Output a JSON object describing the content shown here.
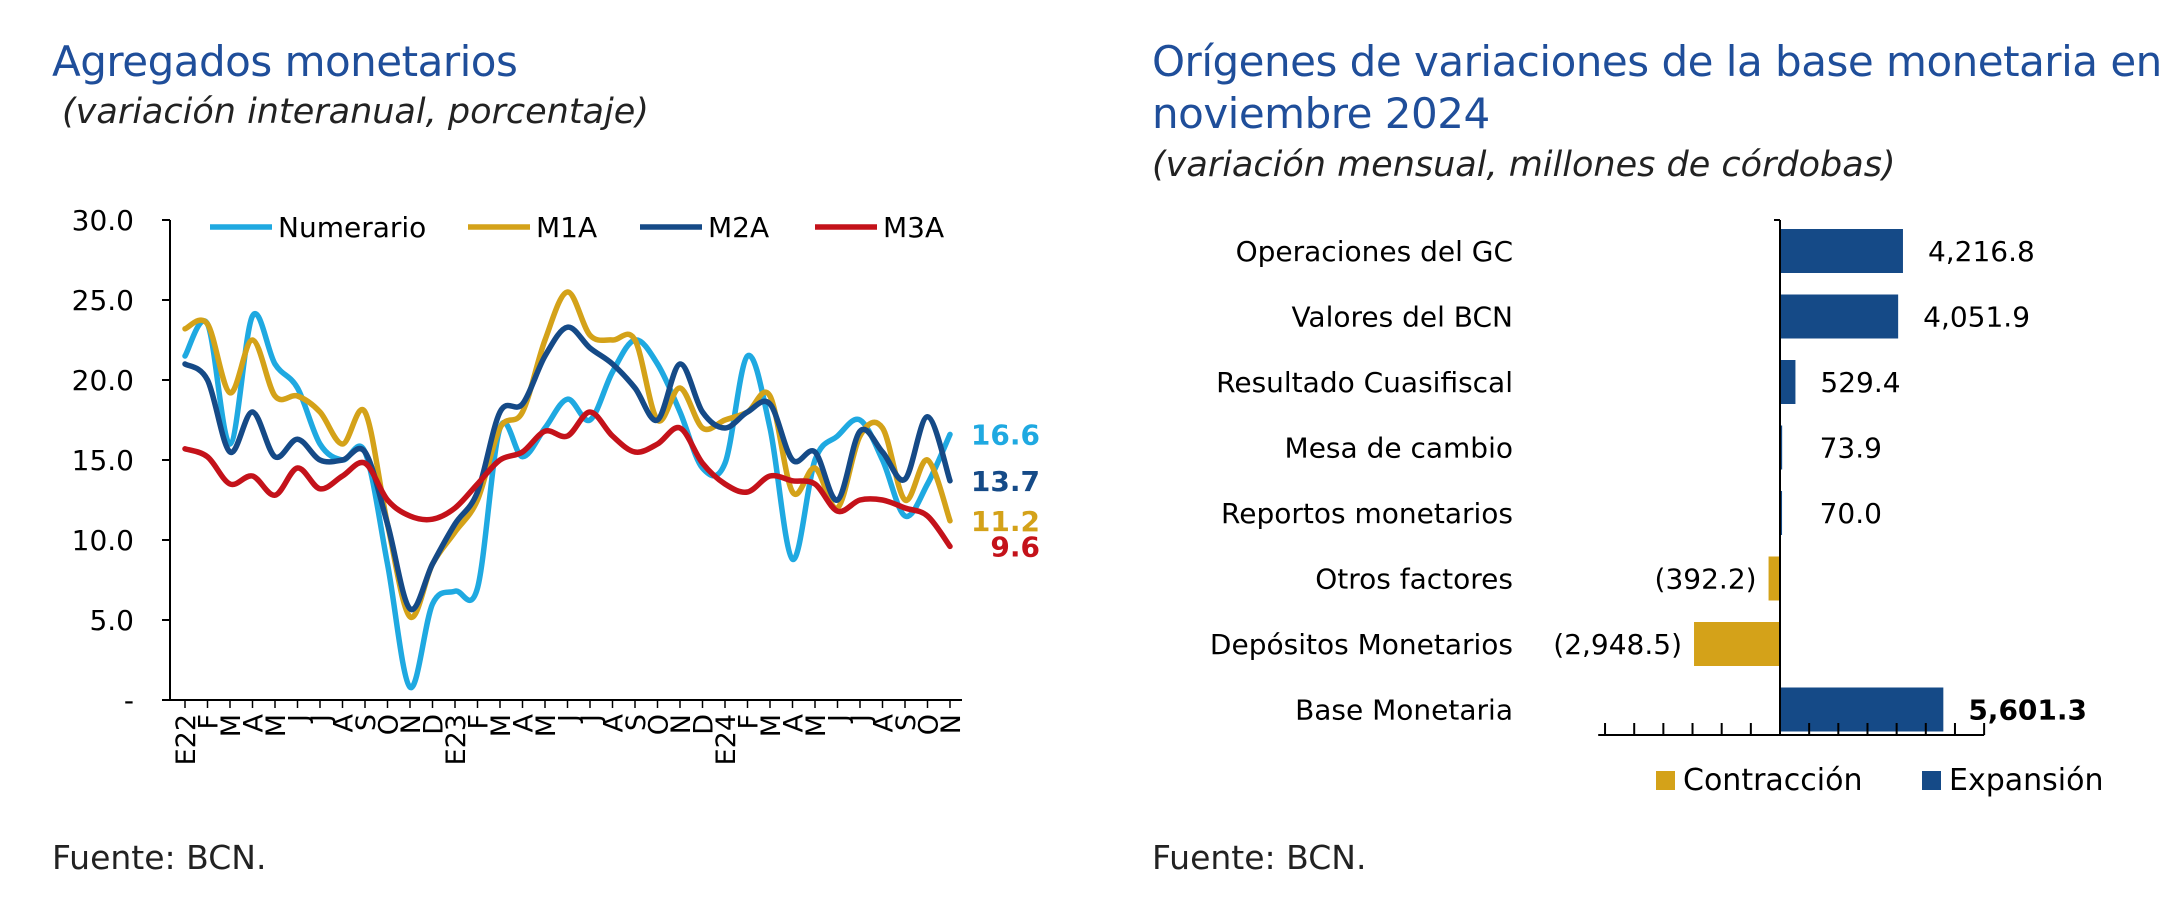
{
  "left": {
    "title": "Agregados monetarios",
    "subtitle": "(variación interanual, porcentaje)",
    "source": "Fuente: BCN."
  },
  "right": {
    "title_line1": "Orígenes de variaciones de la base monetaria en",
    "title_line2": "noviembre 2024",
    "subtitle": "(variación mensual, millones de córdobas)",
    "source": "Fuente: BCN."
  },
  "chart_data": [
    {
      "type": "line",
      "title": "Agregados monetarios",
      "subtitle": "(variación interanual, porcentaje)",
      "x": [
        "E22",
        "F",
        "M",
        "A",
        "M",
        "J",
        "J",
        "A",
        "S",
        "O",
        "N",
        "D",
        "E23",
        "F",
        "M",
        "A",
        "M",
        "J",
        "J",
        "A",
        "S",
        "O",
        "N",
        "D",
        "E24",
        "F",
        "M",
        "A",
        "M",
        "J",
        "J",
        "A",
        "S",
        "O",
        "N"
      ],
      "ylim": [
        0,
        30
      ],
      "yticks": [
        0,
        5,
        10,
        15,
        20,
        25,
        30
      ],
      "ytick_labels": [
        "-",
        "5.0",
        "10.0",
        "15.0",
        "20.0",
        "25.0",
        "30.0"
      ],
      "legend_position": "top",
      "series": [
        {
          "name": "Numerario",
          "color": "#1fa9e1",
          "values": [
            21.5,
            23.5,
            16.0,
            24.0,
            21.0,
            19.5,
            16.0,
            15.0,
            15.5,
            8.5,
            0.8,
            6.0,
            6.8,
            7.0,
            17.0,
            15.2,
            17.0,
            18.8,
            17.5,
            20.5,
            22.5,
            21.0,
            18.0,
            14.5,
            14.8,
            21.5,
            17.0,
            8.8,
            15.0,
            16.5,
            17.5,
            15.0,
            11.5,
            13.5,
            16.6
          ]
        },
        {
          "name": "M1A",
          "color": "#d4a219",
          "values": [
            23.2,
            23.5,
            19.2,
            22.5,
            19.0,
            19.0,
            18.0,
            16.0,
            18.0,
            11.0,
            5.2,
            8.5,
            10.5,
            12.5,
            17.0,
            18.0,
            22.5,
            25.5,
            22.8,
            22.5,
            22.5,
            17.5,
            19.5,
            17.0,
            17.5,
            18.0,
            19.0,
            13.0,
            14.5,
            12.0,
            16.5,
            17.0,
            12.5,
            15.0,
            11.2
          ]
        },
        {
          "name": "M2A",
          "color": "#154a87",
          "values": [
            21.0,
            20.0,
            15.5,
            18.0,
            15.2,
            16.3,
            15.0,
            15.0,
            15.5,
            11.0,
            5.7,
            8.5,
            11.0,
            13.0,
            18.0,
            18.5,
            21.5,
            23.3,
            22.0,
            21.0,
            19.5,
            17.5,
            21.0,
            18.0,
            17.0,
            18.0,
            18.5,
            15.0,
            15.5,
            12.5,
            16.8,
            15.5,
            13.8,
            17.7,
            13.7
          ]
        },
        {
          "name": "M3A",
          "color": "#c4121a",
          "values": [
            15.7,
            15.2,
            13.5,
            14.0,
            12.8,
            14.5,
            13.2,
            14.0,
            14.8,
            12.5,
            11.5,
            11.3,
            12.0,
            13.5,
            15.0,
            15.5,
            16.8,
            16.5,
            18.0,
            16.5,
            15.5,
            16.0,
            17.0,
            14.8,
            13.5,
            13.0,
            14.0,
            13.7,
            13.5,
            11.8,
            12.5,
            12.5,
            12.0,
            11.5,
            9.6
          ]
        }
      ],
      "end_labels": [
        {
          "series": "Numerario",
          "label": "16.6",
          "color": "#1fa9e1"
        },
        {
          "series": "M2A",
          "label": "13.7",
          "color": "#154a87"
        },
        {
          "series": "M1A",
          "label": "11.2",
          "color": "#d4a219"
        },
        {
          "series": "M3A",
          "label": "9.6",
          "color": "#c4121a"
        }
      ]
    },
    {
      "type": "bar",
      "orientation": "horizontal",
      "title": "Orígenes de variaciones de la base monetaria en noviembre 2024",
      "subtitle": "(variación mensual, millones de córdobas)",
      "xlim": [
        -5000,
        7000
      ],
      "xtick_step": 1000,
      "legend_position": "bottom",
      "legend": [
        {
          "name": "Contracción",
          "color": "#d4a219"
        },
        {
          "name": "Expansión",
          "color": "#154a87"
        }
      ],
      "categories": [
        "Operaciones del GC",
        "Valores del BCN",
        "Resultado Cuasifiscal",
        "Mesa de cambio",
        "Reportos monetarios",
        "Otros factores",
        "Depósitos Monetarios",
        "Base Monetaria"
      ],
      "values": [
        4216.8,
        4051.9,
        529.4,
        73.9,
        70.0,
        -392.2,
        -2948.5,
        5601.3
      ],
      "value_labels": [
        "4,216.8",
        "4,051.9",
        "529.4",
        "73.9",
        "70.0",
        "(392.2)",
        "(2,948.5)",
        "5,601.3"
      ],
      "emphasis": "Base Monetaria"
    }
  ]
}
